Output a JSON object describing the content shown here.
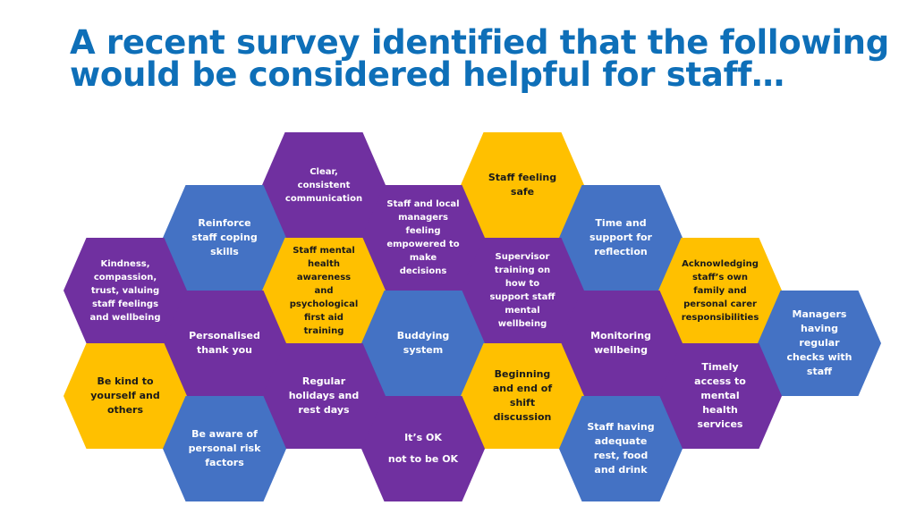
{
  "title": "A recent survey identified that the following would be considered helpful for staff…",
  "colors": {
    "title": "#0e6fb8",
    "purple": "#7030a0",
    "blue": "#4472c4",
    "gold": "#ffc000"
  },
  "hexes": {
    "clear_communication": "Clear, consistent communication",
    "staff_feeling_safe": "Staff feeling safe",
    "reinforce_coping": "Reinforce staff coping skills",
    "managers_empowered": "Staff and local managers feeling empowered to make decisions",
    "time_support_reflection": "Time and support for reflection",
    "kindness_compassion": "Kindness, compassion, trust, valuing staff feelings and wellbeing",
    "mental_health_first_aid": "Staff mental health awareness and psychological first aid training",
    "supervisor_training": "Supervisor training on how to support staff mental wellbeing",
    "acknowledging_carer": "Acknowledging staff’s own family and personal carer responsibilities",
    "personalised_thanks": "Personalised thank you",
    "buddying_system": "Buddying system",
    "monitoring_wellbeing": "Monitoring wellbeing",
    "managers_checks": "Managers having regular checks with staff",
    "be_kind": "Be kind to yourself and others",
    "regular_holidays": "Regular holidays and rest days",
    "shift_discussion": "Beginning and end of shift discussion",
    "mental_health_services": "Timely access to mental health services",
    "personal_risk": "Be aware of personal risk factors",
    "its_ok": "It’s OK\nnot to be OK",
    "adequate_rest": "Staff having adequate rest, food and drink"
  }
}
